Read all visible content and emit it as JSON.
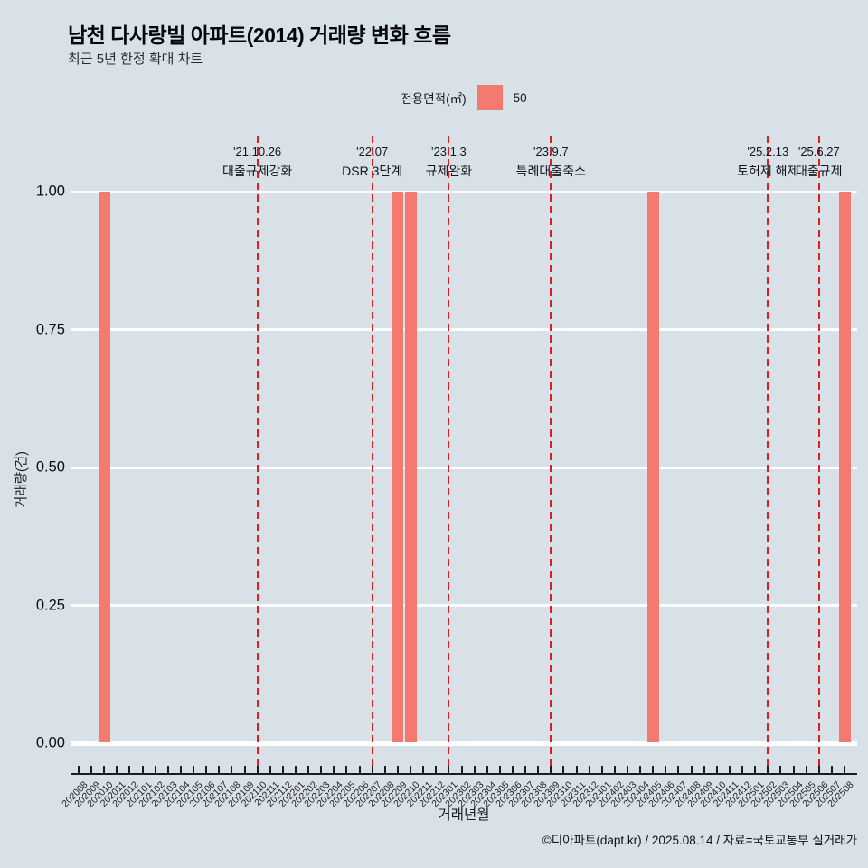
{
  "header": {
    "title": "남천 다사랑빌 아파트(2014) 거래량 변화 흐름",
    "subtitle": "최근 5년 한정 확대 차트"
  },
  "legend": {
    "title": "전용면적(㎡)",
    "items": [
      {
        "label": "50",
        "color": "#f4796e"
      }
    ]
  },
  "chart_data": {
    "type": "bar",
    "xlabel": "거래년월",
    "ylabel": "거래량(건)",
    "ylim": [
      0,
      1
    ],
    "yticks": [
      0,
      0.25,
      0.5,
      0.75,
      1
    ],
    "ytick_labels": [
      "0.00",
      "0.25",
      "0.50",
      "0.75",
      "1.00"
    ],
    "grid": "horizontal-white",
    "legend_position": "top-center",
    "categories": [
      "202008",
      "202009",
      "202010",
      "202011",
      "202012",
      "202101",
      "202102",
      "202103",
      "202104",
      "202105",
      "202106",
      "202107",
      "202108",
      "202109",
      "202110",
      "202111",
      "202112",
      "202201",
      "202202",
      "202203",
      "202204",
      "202205",
      "202206",
      "202207",
      "202208",
      "202209",
      "202210",
      "202211",
      "202212",
      "202301",
      "202302",
      "202303",
      "202304",
      "202305",
      "202306",
      "202307",
      "202308",
      "202309",
      "202310",
      "202311",
      "202312",
      "202401",
      "202402",
      "202403",
      "202404",
      "202405",
      "202406",
      "202407",
      "202408",
      "202409",
      "202410",
      "202411",
      "202412",
      "202501",
      "202502",
      "202503",
      "202504",
      "202505",
      "202506",
      "202507",
      "202508"
    ],
    "series": [
      {
        "name": "50",
        "color": "#f4796e",
        "values": [
          0,
          0,
          1,
          0,
          0,
          0,
          0,
          0,
          0,
          0,
          0,
          0,
          0,
          0,
          0,
          0,
          0,
          0,
          0,
          0,
          0,
          0,
          0,
          0,
          0,
          1,
          1,
          0,
          0,
          0,
          0,
          0,
          0,
          0,
          0,
          0,
          0,
          0,
          0,
          0,
          0,
          0,
          0,
          0,
          0,
          1,
          0,
          0,
          0,
          0,
          0,
          0,
          0,
          0,
          0,
          0,
          0,
          0,
          0,
          0,
          1
        ]
      }
    ],
    "annotations": [
      {
        "date": "'21.10.26",
        "label": "대출규제강화",
        "month": "202110"
      },
      {
        "date": "'22.07",
        "label": "DSR 3단계",
        "month": "202207"
      },
      {
        "date": "'23.1.3",
        "label": "규제완화",
        "month": "202301"
      },
      {
        "date": "'23.9.7",
        "label": "특례대출축소",
        "month": "202309"
      },
      {
        "date": "'25.2.13",
        "label": "토허제 해제",
        "month": "202502"
      },
      {
        "date": "'25.6.27",
        "label": "대출규제",
        "month": "202506"
      }
    ]
  },
  "footer": {
    "credit": "©디아파트(dapt.kr) / 2025.08.14 / 자료=국토교통부 실거래가"
  },
  "colors": {
    "background": "#d8e1e7",
    "bar": "#f4796e",
    "annotation_line": "#dd1e1e",
    "gridline": "#ffffff",
    "axis": "#1a1a24",
    "text": "#111111"
  }
}
